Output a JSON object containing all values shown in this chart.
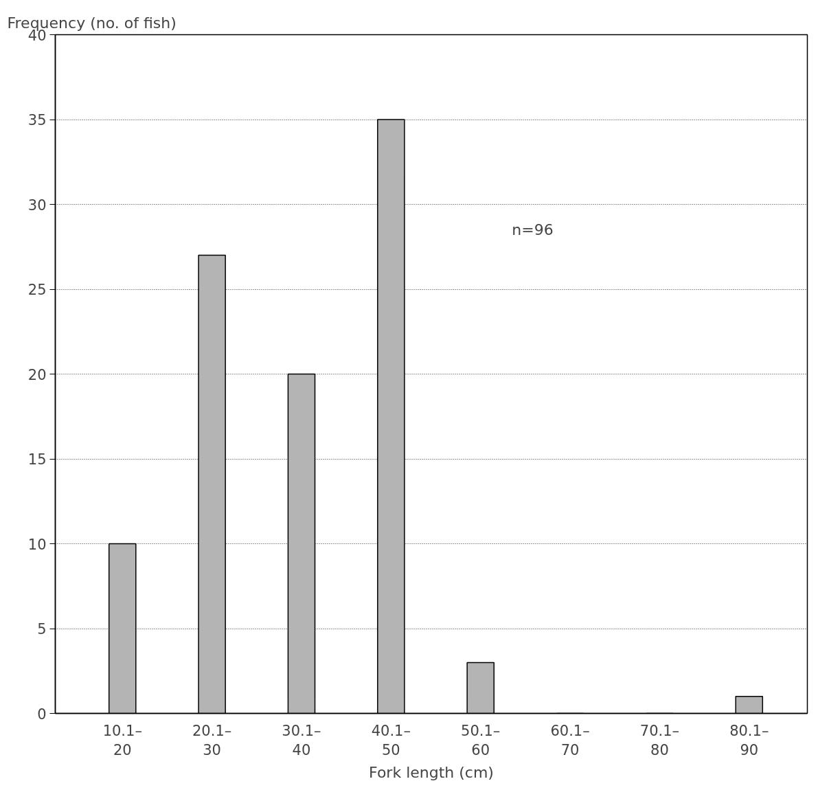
{
  "chart_data": {
    "type": "bar",
    "ylabel": "Frequency (no. of fish)",
    "xlabel": "Fork length (cm)",
    "categories": [
      "10.1–\n20",
      "20.1–\n30",
      "30.1–\n40",
      "40.1–\n50",
      "50.1–\n60",
      "60.1–\n70",
      "70.1–\n80",
      "80.1–\n90"
    ],
    "values": [
      10,
      27,
      20,
      35,
      3,
      0,
      0,
      1
    ],
    "color": "#b4b4b4",
    "ylim": [
      0,
      40
    ],
    "yticks": [
      0,
      5,
      10,
      15,
      20,
      25,
      30,
      35,
      40
    ],
    "grid": "y",
    "annotations": [
      "n=96"
    ]
  }
}
